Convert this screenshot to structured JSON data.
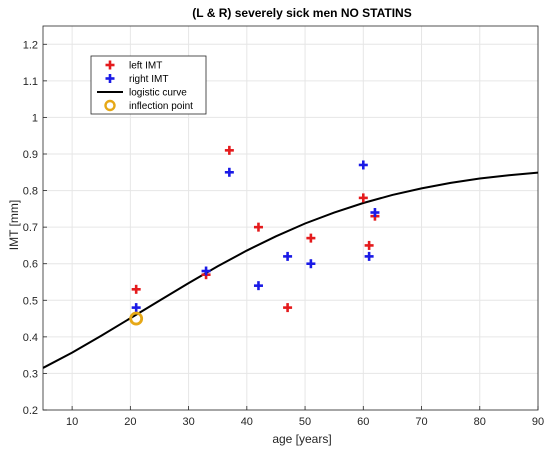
{
  "chart_data": {
    "type": "scatter",
    "title": "(L & R) severely sick men NO STATINS",
    "xlabel": "age [years]",
    "ylabel": "IMT [mm]",
    "xlim": [
      5,
      90
    ],
    "ylim": [
      0.2,
      1.25
    ],
    "xticks": [
      10,
      20,
      30,
      40,
      50,
      60,
      70,
      80,
      90
    ],
    "yticks": [
      0.2,
      0.3,
      0.4,
      0.5,
      0.6,
      0.7,
      0.8,
      0.9,
      1,
      1.1,
      1.2
    ],
    "grid": true,
    "legend_position": "top-left",
    "series": [
      {
        "name": "left IMT",
        "marker": "plus",
        "color": "#e41a1c",
        "x": [
          21,
          33,
          37,
          42,
          47,
          51,
          60,
          61,
          62
        ],
        "y": [
          0.53,
          0.57,
          0.91,
          0.7,
          0.48,
          0.67,
          0.78,
          0.65,
          0.73
        ]
      },
      {
        "name": "right IMT",
        "marker": "plus",
        "color": "#1a1ae6",
        "x": [
          21,
          33,
          37,
          42,
          47,
          51,
          60,
          61,
          62
        ],
        "y": [
          0.48,
          0.58,
          0.85,
          0.54,
          0.62,
          0.6,
          0.87,
          0.62,
          0.74
        ]
      },
      {
        "name": "logistic curve",
        "type": "line",
        "color": "#000000",
        "x": [
          5,
          10,
          15,
          20,
          25,
          30,
          35,
          40,
          45,
          50,
          55,
          60,
          65,
          70,
          75,
          80,
          85,
          90
        ],
        "y": [
          0.315,
          0.357,
          0.403,
          0.451,
          0.499,
          0.547,
          0.593,
          0.636,
          0.675,
          0.71,
          0.74,
          0.766,
          0.788,
          0.806,
          0.821,
          0.833,
          0.842,
          0.849
        ]
      },
      {
        "name": "inflection point",
        "marker": "circle",
        "color": "#e6a817",
        "x": [
          21
        ],
        "y": [
          0.45
        ]
      }
    ]
  }
}
